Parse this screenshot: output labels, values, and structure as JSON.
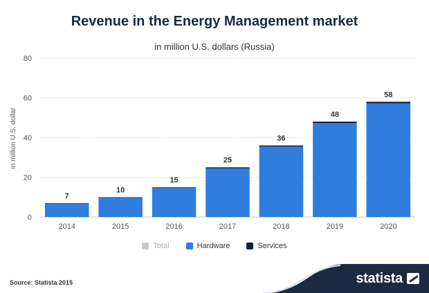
{
  "header": {
    "title": "Revenue in the Energy Management market",
    "subtitle": "in million U.S. dollars (Russia)"
  },
  "footer": {
    "source": "Source: Statista 2015",
    "brand": "statista"
  },
  "colors": {
    "hardware": "#2f7ddc",
    "services": "#14233c",
    "total": "#c9c9c9",
    "grid": "#d9d9d9",
    "brand_dark": "#1b2a41"
  },
  "chart_data": {
    "type": "bar",
    "stacked": true,
    "categories": [
      "2014",
      "2015",
      "2016",
      "2017",
      "2018",
      "2019",
      "2020"
    ],
    "series": [
      {
        "name": "Total",
        "values": [
          7,
          10,
          15,
          25,
          36,
          48,
          58
        ],
        "visible": false,
        "color": "#c9c9c9"
      },
      {
        "name": "Hardware",
        "values": [
          6.8,
          9.8,
          14.7,
          24.5,
          35.4,
          47.3,
          57.2
        ],
        "visible": true,
        "color": "#2f7ddc"
      },
      {
        "name": "Services",
        "values": [
          0.2,
          0.2,
          0.3,
          0.5,
          0.6,
          0.7,
          0.8
        ],
        "visible": true,
        "color": "#14233c"
      }
    ],
    "data_labels": [
      "7",
      "10",
      "15",
      "25",
      "36",
      "48",
      "58"
    ],
    "ylabel": "in million U.S. dollar",
    "xlabel": "",
    "ylim": [
      0,
      80
    ],
    "yticks": [
      0,
      20,
      40,
      60,
      80
    ],
    "grid": true,
    "legend_position": "bottom"
  }
}
